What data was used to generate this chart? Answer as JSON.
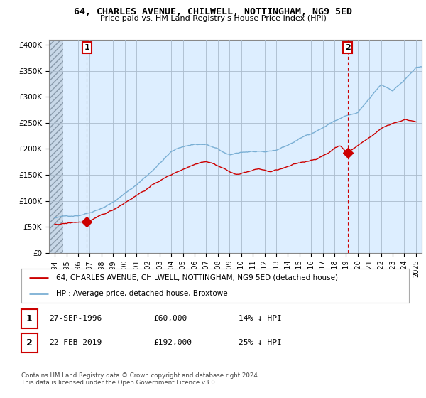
{
  "title": "64, CHARLES AVENUE, CHILWELL, NOTTINGHAM, NG9 5ED",
  "subtitle": "Price paid vs. HM Land Registry's House Price Index (HPI)",
  "legend_line1": "64, CHARLES AVENUE, CHILWELL, NOTTINGHAM, NG9 5ED (detached house)",
  "legend_line2": "HPI: Average price, detached house, Broxtowe",
  "footnote": "Contains HM Land Registry data © Crown copyright and database right 2024.\nThis data is licensed under the Open Government Licence v3.0.",
  "table_rows": [
    [
      "1",
      "27-SEP-1996",
      "£60,000",
      "14% ↓ HPI"
    ],
    [
      "2",
      "22-FEB-2019",
      "£192,000",
      "25% ↓ HPI"
    ]
  ],
  "price_paid_color": "#cc0000",
  "hpi_color": "#7aafd4",
  "marker1_x": 1996.75,
  "marker1_y": 60000,
  "marker2_x": 2019.15,
  "marker2_y": 192000,
  "ylim": [
    0,
    410000
  ],
  "xlim": [
    1993.5,
    2025.5
  ],
  "yticks": [
    0,
    50000,
    100000,
    150000,
    200000,
    250000,
    300000,
    350000,
    400000
  ],
  "ytick_labels": [
    "£0",
    "£50K",
    "£100K",
    "£150K",
    "£200K",
    "£250K",
    "£300K",
    "£350K",
    "£400K"
  ],
  "xticks": [
    1994,
    1995,
    1996,
    1997,
    1998,
    1999,
    2000,
    2001,
    2002,
    2003,
    2004,
    2005,
    2006,
    2007,
    2008,
    2009,
    2010,
    2011,
    2012,
    2013,
    2014,
    2015,
    2016,
    2017,
    2018,
    2019,
    2020,
    2021,
    2022,
    2023,
    2024,
    2025
  ],
  "chart_bg_color": "#ddeeff",
  "hatch_color": "#bbccdd",
  "grid_color": "#aabbcc",
  "vline1_color": "#888888",
  "vline2_color": "#cc0000"
}
